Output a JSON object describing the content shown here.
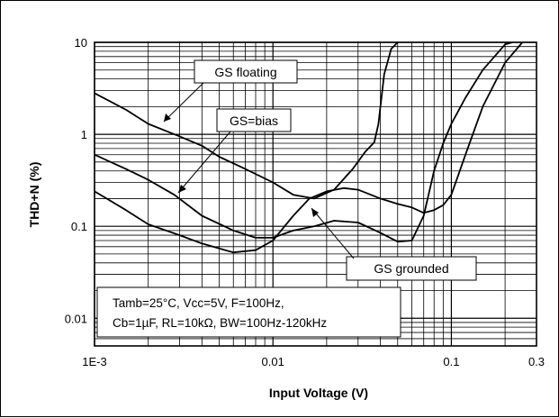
{
  "chart_data": {
    "type": "line",
    "title": "",
    "xlabel": "Input Voltage (V)",
    "ylabel": "THD+N (%)",
    "xscale": "log",
    "yscale": "log",
    "xlim": [
      0.001,
      0.3
    ],
    "ylim": [
      0.005,
      10
    ],
    "grid": true,
    "x_tick_labels": [
      "1E-3",
      "0.01",
      "0.1",
      "0.3"
    ],
    "x_tick_values": [
      0.001,
      0.01,
      0.1,
      0.3
    ],
    "y_tick_labels": [
      "0.01",
      "0.1",
      "1",
      "10"
    ],
    "y_tick_values": [
      0.01,
      0.1,
      1,
      10
    ],
    "series": [
      {
        "name": "GS floating",
        "color": "#000000",
        "x": [
          0.001,
          0.0015,
          0.002,
          0.003,
          0.004,
          0.005,
          0.007,
          0.01,
          0.013,
          0.017,
          0.022,
          0.028,
          0.033,
          0.037,
          0.039,
          0.042,
          0.046,
          0.05
        ],
        "y": [
          2.8,
          1.85,
          1.3,
          0.95,
          0.75,
          0.57,
          0.42,
          0.3,
          0.22,
          0.2,
          0.25,
          0.42,
          0.65,
          0.82,
          1.3,
          4.5,
          8.5,
          10
        ]
      },
      {
        "name": "GS=bias",
        "color": "#000000",
        "x": [
          0.001,
          0.0015,
          0.002,
          0.0028,
          0.004,
          0.006,
          0.008,
          0.01,
          0.013,
          0.017,
          0.022,
          0.03,
          0.04,
          0.05,
          0.06,
          0.07,
          0.08,
          0.09,
          0.1,
          0.12,
          0.15,
          0.2,
          0.22
        ],
        "y": [
          0.6,
          0.42,
          0.32,
          0.22,
          0.13,
          0.09,
          0.075,
          0.075,
          0.09,
          0.1,
          0.115,
          0.11,
          0.085,
          0.068,
          0.07,
          0.13,
          0.4,
          0.8,
          1.3,
          2.5,
          5.0,
          9.5,
          10
        ]
      },
      {
        "name": "GS grounded",
        "color": "#000000",
        "x": [
          0.001,
          0.0015,
          0.002,
          0.003,
          0.004,
          0.006,
          0.008,
          0.01,
          0.013,
          0.016,
          0.02,
          0.025,
          0.03,
          0.04,
          0.05,
          0.06,
          0.07,
          0.08,
          0.09,
          0.1,
          0.12,
          0.15,
          0.2,
          0.25
        ],
        "y": [
          0.24,
          0.15,
          0.105,
          0.08,
          0.065,
          0.052,
          0.055,
          0.07,
          0.13,
          0.2,
          0.24,
          0.26,
          0.25,
          0.2,
          0.175,
          0.16,
          0.14,
          0.15,
          0.17,
          0.22,
          0.6,
          2.0,
          6.0,
          10
        ]
      }
    ],
    "annotations": [
      {
        "text": "GS floating"
      },
      {
        "text": "GS=bias"
      },
      {
        "text": "GS grounded"
      }
    ],
    "conditions_line1": "Tamb=25°C, Vcc=5V, F=100Hz,",
    "conditions_line2": "Cb=1µF, RL=10kΩ, BW=100Hz-120kHz"
  }
}
